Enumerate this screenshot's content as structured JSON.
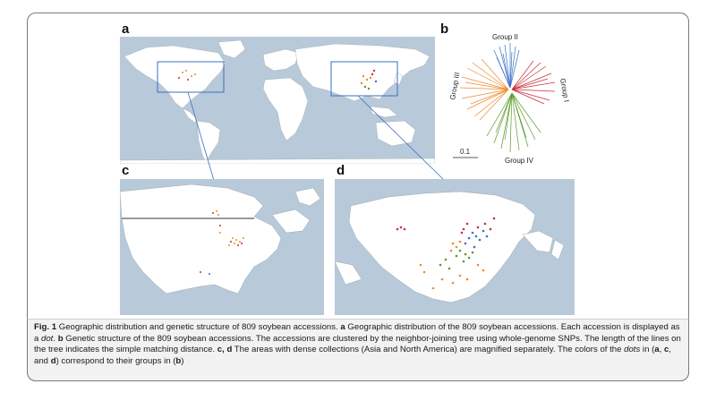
{
  "panels": {
    "a": {
      "label": "a"
    },
    "b": {
      "label": "b",
      "groups": [
        "Group I",
        "Group II",
        "Group III",
        "Group IV"
      ],
      "scale": "0.1"
    },
    "c": {
      "label": "c"
    },
    "d": {
      "label": "d"
    }
  },
  "colors": {
    "ocean": "#b8c9da",
    "land": "#ffffff",
    "group_I": "#c8303a",
    "group_II": "#3a6fc4",
    "group_III": "#f08a2a",
    "group_IV": "#5c9a2e",
    "highlight_box": "#3a6fc4"
  },
  "caption": {
    "fig": "Fig. 1",
    "title": " Geographic distribution and genetic structure of 809 soybean accessions. ",
    "a_key": "a",
    "a_text": " Geographic distribution of the 809 soybean accessions. Each accession is displayed as a ",
    "dot1": "dot",
    "sep1": ". ",
    "b_key": "b",
    "b_text": " Genetic structure of the 809 soybean accessions. The accessions are clustered by the neighbor-joining tree using whole-genome SNPs. The length of the lines on the tree indicates the simple matching distance. ",
    "cd_key": "c, d",
    "cd_text": " The areas with dense collections (Asia and North America) are magnified separately. The colors of the ",
    "dots2": "dots",
    "in_text": " in (",
    "ref_a": "a",
    "comma1": ", ",
    "ref_c": "c",
    "and_text": ", and ",
    "ref_d": "d",
    "correspond": ") correspond to their groups in (",
    "ref_b": "b",
    "close": ")"
  }
}
